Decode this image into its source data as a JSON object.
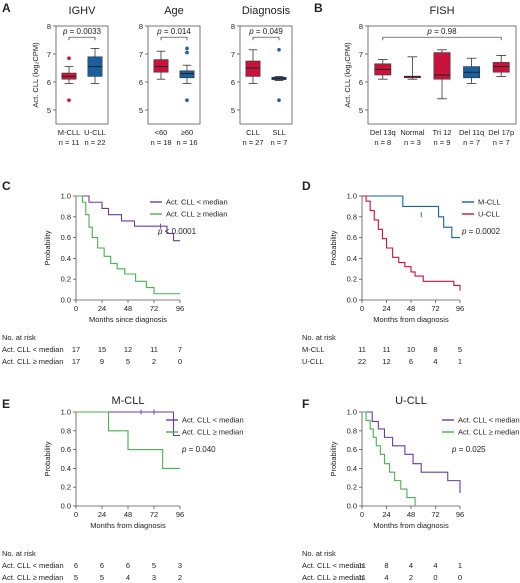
{
  "panels": {
    "A": {
      "label": "A",
      "ylabel": "Act. CLL (log₂CPM)",
      "ylim": [
        4.5,
        8
      ],
      "yticks": [
        "5",
        "6",
        "7",
        "8"
      ],
      "subplots": [
        {
          "title": "IGHV",
          "pvalue": "p = 0.0033",
          "groups": [
            {
              "label": "M-CLL",
              "n": "n = 11",
              "color": "#c8143c",
              "whisker_low": 5.95,
              "q1": 6.1,
              "median": 6.2,
              "q3": 6.32,
              "whisker_high": 6.55,
              "outliers": [
                5.35,
                6.85
              ]
            },
            {
              "label": "U-CLL",
              "n": "n = 22",
              "color": "#1a5f9e",
              "whisker_low": 5.95,
              "q1": 6.2,
              "median": 6.55,
              "q3": 6.9,
              "whisker_high": 7.2,
              "outliers": []
            }
          ]
        },
        {
          "title": "Age",
          "pvalue": "p = 0.014",
          "groups": [
            {
              "label": "<60",
              "n": "n = 18",
              "color": "#c8143c",
              "whisker_low": 6.1,
              "q1": 6.35,
              "median": 6.55,
              "q3": 6.8,
              "whisker_high": 7.1,
              "outliers": []
            },
            {
              "label": "≥60",
              "n": "n = 16",
              "color": "#1a5f9e",
              "whisker_low": 5.95,
              "q1": 6.15,
              "median": 6.3,
              "q3": 6.4,
              "whisker_high": 6.6,
              "outliers": [
                5.35,
                7.2,
                7.05
              ]
            }
          ]
        },
        {
          "title": "Diagnosis",
          "pvalue": "p = 0.049",
          "groups": [
            {
              "label": "CLL",
              "n": "n = 27",
              "color": "#c8143c",
              "whisker_low": 5.95,
              "q1": 6.2,
              "median": 6.5,
              "q3": 6.75,
              "whisker_high": 7.15,
              "outliers": []
            },
            {
              "label": "SLL",
              "n": "n = 7",
              "color": "#1a5f9e",
              "whisker_low": 6.05,
              "q1": 6.08,
              "median": 6.13,
              "q3": 6.17,
              "whisker_high": 6.2,
              "outliers": [
                5.35,
                7.15
              ]
            }
          ]
        }
      ]
    },
    "B": {
      "label": "B",
      "title": "FISH",
      "ylabel": "Act. CLL (log₂CPM)",
      "pvalue": "p = 0.98",
      "ylim": [
        4.5,
        8
      ],
      "yticks": [
        "5",
        "6",
        "7",
        "8"
      ],
      "groups": [
        {
          "label": "Del 13q",
          "n": "n = 8",
          "color": "#c8143c",
          "whisker_low": 6.1,
          "q1": 6.25,
          "median": 6.45,
          "q3": 6.65,
          "whisker_high": 6.8,
          "outliers": []
        },
        {
          "label": "Normal",
          "n": "n = 3",
          "color": "#c8143c",
          "whisker_low": 6.1,
          "q1": 6.15,
          "median": 6.2,
          "q3": 6.2,
          "whisker_high": 6.9,
          "outliers": []
        },
        {
          "label": "Tri 12",
          "n": "n = 9",
          "color": "#c8143c",
          "whisker_low": 5.4,
          "q1": 6.1,
          "median": 6.25,
          "q3": 7.05,
          "whisker_high": 7.15,
          "outliers": []
        },
        {
          "label": "Del 11q",
          "n": "n = 7",
          "color": "#1a5f9e",
          "whisker_low": 5.95,
          "q1": 6.15,
          "median": 6.35,
          "q3": 6.55,
          "whisker_high": 6.85,
          "outliers": []
        },
        {
          "label": "Del 17p",
          "n": "n = 7",
          "color": "#c8143c",
          "whisker_low": 6.2,
          "q1": 6.35,
          "median": 6.55,
          "q3": 6.7,
          "whisker_high": 6.95,
          "outliers": []
        }
      ]
    },
    "C": {
      "label": "C",
      "xlabel": "Months since diagnosis",
      "ylabel": "Probability",
      "pvalue": "p < 0.0001",
      "series": [
        {
          "name": "Act. CLL < median",
          "color": "#6a3d9a",
          "steps": [
            [
              0,
              1
            ],
            [
              12,
              0.94
            ],
            [
              24,
              0.88
            ],
            [
              30,
              0.82
            ],
            [
              42,
              0.76
            ],
            [
              54,
              0.71
            ],
            [
              84,
              0.64
            ],
            [
              90,
              0.57
            ],
            [
              96,
              0.57
            ]
          ],
          "censors": [
            [
              78,
              0.71
            ]
          ]
        },
        {
          "name": "Act. CLL ≥ median",
          "color": "#4caf50",
          "steps": [
            [
              0,
              1
            ],
            [
              6,
              0.94
            ],
            [
              9,
              0.82
            ],
            [
              12,
              0.7
            ],
            [
              15,
              0.6
            ],
            [
              20,
              0.5
            ],
            [
              26,
              0.42
            ],
            [
              32,
              0.35
            ],
            [
              38,
              0.3
            ],
            [
              45,
              0.25
            ],
            [
              55,
              0.18
            ],
            [
              65,
              0.12
            ],
            [
              72,
              0.06
            ],
            [
              96,
              0.06
            ]
          ],
          "censors": []
        }
      ],
      "risk_table": {
        "title": "No. at risk",
        "times": [
          "0",
          "24",
          "48",
          "72",
          "96"
        ],
        "rows": [
          {
            "name": "Act. CLL < median",
            "values": [
              "17",
              "15",
              "12",
              "11",
              "7"
            ]
          },
          {
            "name": "Act. CLL ≥ median",
            "values": [
              "17",
              "9",
              "5",
              "2",
              "0"
            ]
          }
        ]
      }
    },
    "D": {
      "label": "D",
      "xlabel": "Months from diagnosis",
      "ylabel": "Probability",
      "pvalue": "p = 0.0002",
      "series": [
        {
          "name": "M-CLL",
          "color": "#1a5f9e",
          "steps": [
            [
              0,
              1
            ],
            [
              40,
              0.9
            ],
            [
              75,
              0.8
            ],
            [
              80,
              0.7
            ],
            [
              88,
              0.6
            ],
            [
              96,
              0.6
            ]
          ],
          "censors": [
            [
              58,
              0.82
            ]
          ]
        },
        {
          "name": "U-CLL",
          "color": "#c8143c",
          "steps": [
            [
              0,
              1
            ],
            [
              4,
              0.95
            ],
            [
              8,
              0.86
            ],
            [
              12,
              0.77
            ],
            [
              16,
              0.68
            ],
            [
              20,
              0.59
            ],
            [
              24,
              0.5
            ],
            [
              30,
              0.41
            ],
            [
              36,
              0.36
            ],
            [
              42,
              0.32
            ],
            [
              48,
              0.27
            ],
            [
              52,
              0.23
            ],
            [
              60,
              0.18
            ],
            [
              72,
              0.18
            ],
            [
              90,
              0.14
            ],
            [
              96,
              0.09
            ]
          ],
          "censors": []
        }
      ],
      "risk_table": {
        "title": "No. at risk",
        "times": [
          "0",
          "24",
          "48",
          "72",
          "96"
        ],
        "rows": [
          {
            "name": "M-CLL",
            "values": [
              "11",
              "11",
              "10",
              "8",
              "5"
            ]
          },
          {
            "name": "U-CLL",
            "values": [
              "22",
              "12",
              "6",
              "4",
              "1"
            ]
          }
        ]
      }
    },
    "E": {
      "label": "E",
      "title": "M-CLL",
      "xlabel": "Months from diagnosis",
      "ylabel": "Probability",
      "pvalue": "p = 0.040",
      "series": [
        {
          "name": "Act. CLL < median",
          "color": "#6a3d9a",
          "steps": [
            [
              0,
              1
            ],
            [
              88,
              1
            ],
            [
              90,
              0.75
            ],
            [
              96,
              0.75
            ]
          ],
          "censors": [
            [
              60,
              1
            ],
            [
              72,
              1
            ]
          ]
        },
        {
          "name": "Act. CLL ≥ median",
          "color": "#4caf50",
          "steps": [
            [
              0,
              1
            ],
            [
              30,
              0.8
            ],
            [
              48,
              0.6
            ],
            [
              80,
              0.4
            ],
            [
              96,
              0.4
            ]
          ],
          "censors": []
        }
      ],
      "risk_table": {
        "title": "No. at risk",
        "times": [
          "0",
          "24",
          "48",
          "72",
          "96"
        ],
        "rows": [
          {
            "name": "Act. CLL < median",
            "values": [
              "6",
              "6",
              "6",
              "5",
              "3"
            ]
          },
          {
            "name": "Act. CLL ≥ median",
            "values": [
              "5",
              "5",
              "4",
              "3",
              "2"
            ]
          }
        ]
      }
    },
    "F": {
      "label": "F",
      "title": "U-CLL",
      "xlabel": "Months from diagnosis",
      "ylabel": "Probability",
      "pvalue": "p = 0.025",
      "series": [
        {
          "name": "Act. CLL < median",
          "color": "#6a3d9a",
          "steps": [
            [
              0,
              1
            ],
            [
              10,
              0.9
            ],
            [
              16,
              0.82
            ],
            [
              22,
              0.73
            ],
            [
              30,
              0.64
            ],
            [
              42,
              0.55
            ],
            [
              50,
              0.45
            ],
            [
              58,
              0.36
            ],
            [
              84,
              0.27
            ],
            [
              96,
              0.14
            ]
          ],
          "censors": []
        },
        {
          "name": "Act. CLL ≥ median",
          "color": "#4caf50",
          "steps": [
            [
              0,
              1
            ],
            [
              4,
              0.91
            ],
            [
              8,
              0.82
            ],
            [
              11,
              0.73
            ],
            [
              14,
              0.64
            ],
            [
              18,
              0.55
            ],
            [
              22,
              0.45
            ],
            [
              27,
              0.36
            ],
            [
              32,
              0.27
            ],
            [
              38,
              0.18
            ],
            [
              44,
              0.09
            ],
            [
              52,
              0.0
            ]
          ],
          "censors": []
        }
      ],
      "risk_table": {
        "title": "No. at risk",
        "times": [
          "0",
          "24",
          "48",
          "72",
          "96"
        ],
        "rows": [
          {
            "name": "Act. CLL < median",
            "values": [
              "11",
              "8",
              "4",
              "4",
              "1"
            ]
          },
          {
            "name": "Act. CLL ≥ median",
            "values": [
              "11",
              "4",
              "2",
              "0",
              "0"
            ]
          }
        ]
      }
    }
  },
  "chart_data": [
    {
      "type": "box",
      "title": "IGHV",
      "ylabel": "Act. CLL (log₂CPM)",
      "categories": [
        "M-CLL",
        "U-CLL"
      ],
      "medians": [
        6.2,
        6.55
      ],
      "annotation": "p = 0.0033"
    },
    {
      "type": "box",
      "title": "Age",
      "ylabel": "Act. CLL (log₂CPM)",
      "categories": [
        "<60",
        "≥60"
      ],
      "medians": [
        6.55,
        6.3
      ],
      "annotation": "p = 0.014"
    },
    {
      "type": "box",
      "title": "Diagnosis",
      "ylabel": "Act. CLL (log₂CPM)",
      "categories": [
        "CLL",
        "SLL"
      ],
      "medians": [
        6.5,
        6.13
      ],
      "annotation": "p = 0.049"
    },
    {
      "type": "box",
      "title": "FISH",
      "ylabel": "Act. CLL (log₂CPM)",
      "categories": [
        "Del 13q",
        "Normal",
        "Tri 12",
        "Del 11q",
        "Del 17p"
      ],
      "medians": [
        6.45,
        6.2,
        6.25,
        6.35,
        6.55
      ],
      "annotation": "p = 0.98"
    },
    {
      "type": "line",
      "subtype": "kaplan-meier",
      "xlabel": "Months since diagnosis",
      "ylabel": "Probability",
      "xlim": [
        0,
        96
      ],
      "ylim": [
        0,
        1
      ],
      "series": [
        "Act. CLL < median",
        "Act. CLL ≥ median"
      ],
      "annotation": "p < 0.0001"
    },
    {
      "type": "line",
      "subtype": "kaplan-meier",
      "xlabel": "Months from diagnosis",
      "ylabel": "Probability",
      "xlim": [
        0,
        96
      ],
      "ylim": [
        0,
        1
      ],
      "series": [
        "M-CLL",
        "U-CLL"
      ],
      "annotation": "p = 0.0002"
    },
    {
      "type": "line",
      "subtype": "kaplan-meier",
      "title": "M-CLL",
      "xlabel": "Months from diagnosis",
      "ylabel": "Probability",
      "xlim": [
        0,
        96
      ],
      "ylim": [
        0,
        1
      ],
      "series": [
        "Act. CLL < median",
        "Act. CLL ≥ median"
      ],
      "annotation": "p = 0.040"
    },
    {
      "type": "line",
      "subtype": "kaplan-meier",
      "title": "U-CLL",
      "xlabel": "Months from diagnosis",
      "ylabel": "Probability",
      "xlim": [
        0,
        96
      ],
      "ylim": [
        0,
        1
      ],
      "series": [
        "Act. CLL < median",
        "Act. CLL ≥ median"
      ],
      "annotation": "p = 0.025"
    }
  ]
}
